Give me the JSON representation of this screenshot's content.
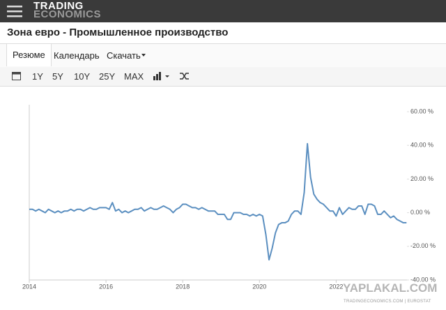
{
  "header": {
    "logo": [
      "TRADING",
      "ECONOMICS"
    ]
  },
  "title": "Зона евро - Промышленное производство",
  "tabs": [
    "Резюме",
    "Календарь",
    "Скачать"
  ],
  "ranges": [
    "1Y",
    "5Y",
    "10Y",
    "25Y",
    "MAX"
  ],
  "source": "TRADINGECONOMICS.COM | EUROSTAT",
  "watermark": "YAPLAKAL.COM",
  "chart_data": {
    "type": "line",
    "x": [
      2014,
      2014.083,
      2014.167,
      2014.25,
      2014.333,
      2014.417,
      2014.5,
      2014.583,
      2014.667,
      2014.75,
      2014.833,
      2014.917,
      2015,
      2015.083,
      2015.167,
      2015.25,
      2015.333,
      2015.417,
      2015.5,
      2015.583,
      2015.667,
      2015.75,
      2015.833,
      2015.917,
      2016,
      2016.083,
      2016.167,
      2016.25,
      2016.333,
      2016.417,
      2016.5,
      2016.583,
      2016.667,
      2016.75,
      2016.833,
      2016.917,
      2017,
      2017.083,
      2017.167,
      2017.25,
      2017.333,
      2017.417,
      2017.5,
      2017.583,
      2017.667,
      2017.75,
      2017.833,
      2017.917,
      2018,
      2018.083,
      2018.167,
      2018.25,
      2018.333,
      2018.417,
      2018.5,
      2018.583,
      2018.667,
      2018.75,
      2018.833,
      2018.917,
      2019,
      2019.083,
      2019.167,
      2019.25,
      2019.333,
      2019.417,
      2019.5,
      2019.583,
      2019.667,
      2019.75,
      2019.833,
      2019.917,
      2020,
      2020.083,
      2020.167,
      2020.25,
      2020.333,
      2020.417,
      2020.5,
      2020.583,
      2020.667,
      2020.75,
      2020.833,
      2020.917,
      2021,
      2021.083,
      2021.167,
      2021.25,
      2021.333,
      2021.417,
      2021.5,
      2021.583,
      2021.667,
      2021.75,
      2021.833,
      2021.917,
      2022,
      2022.083,
      2022.167,
      2022.25,
      2022.333,
      2022.417,
      2022.5,
      2022.583,
      2022.667,
      2022.75,
      2022.833,
      2022.917,
      2023,
      2023.083,
      2023.167,
      2023.25,
      2023.333,
      2023.417,
      2023.5,
      2023.583,
      2023.667,
      2023.75,
      2023.833
    ],
    "series": [
      {
        "color": "#5b8fc0",
        "values": [
          2,
          2,
          1,
          2,
          1,
          0,
          2,
          1,
          0,
          1,
          0,
          1,
          1,
          2,
          1,
          2,
          2,
          1,
          2,
          3,
          2,
          2,
          3,
          3,
          3,
          2,
          6,
          1,
          2,
          0,
          1,
          0,
          1,
          2,
          2,
          3,
          1,
          2,
          3,
          2,
          2,
          3,
          4,
          3,
          2,
          0,
          2,
          3,
          5,
          5,
          4,
          3,
          3,
          2,
          3,
          2,
          1,
          1,
          1,
          -1,
          -1,
          -1,
          -4,
          -4,
          0,
          0,
          0,
          -1,
          -1,
          -2,
          -1,
          -2,
          -1,
          -2,
          -13,
          -28,
          -21,
          -12,
          -7,
          -6,
          -6,
          -5,
          -1,
          1,
          1,
          -1,
          12,
          41,
          21,
          11,
          8,
          6,
          5,
          3,
          1,
          1,
          -2,
          3,
          -1,
          1,
          3,
          2,
          2,
          4,
          4,
          -1,
          5,
          5,
          4,
          -1,
          -1,
          1,
          -1,
          -3,
          -2,
          -4,
          -5,
          -6,
          -6
        ]
      }
    ],
    "xlim": [
      2014,
      2023.9
    ],
    "xticks": [
      2014,
      2016,
      2018,
      2020,
      2022
    ],
    "ylim": [
      -40,
      60
    ],
    "yticks": [
      {
        "value": -40,
        "label": "-40.00 %"
      },
      {
        "value": -20,
        "label": "-20.00 %"
      },
      {
        "value": 0,
        "label": "0.00 %"
      },
      {
        "value": 20,
        "label": "20.00 %"
      },
      {
        "value": 40,
        "label": "40.00 %"
      },
      {
        "value": 60,
        "label": "60.00 %"
      }
    ],
    "grid": false
  }
}
